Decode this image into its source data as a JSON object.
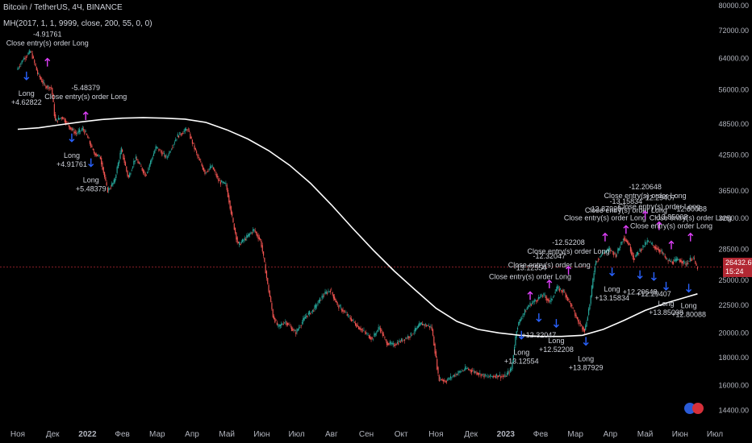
{
  "header": {
    "symbol": "Bitcoin / TetherUS, 4Ч, BINANCE",
    "indicator": "MH(2017, 1, 1, 9999, close, 200, 55, 0, 0)"
  },
  "price_tag": {
    "price": "26432.60",
    "countdown": "15:24"
  },
  "colors": {
    "background": "#000000",
    "up": "#26a69a",
    "down": "#ef5350",
    "ma": "#ffffff",
    "buy_arrow": "#2962ff",
    "sell_arrow": "#e040fb",
    "price_line": "#b22833"
  },
  "chart_data": {
    "type": "candlestick",
    "x_ticks": [
      "Ноя",
      "Дек",
      "2022",
      "Фев",
      "Мар",
      "Апр",
      "Май",
      "Июн",
      "Июл",
      "Авг",
      "Сен",
      "Окт",
      "Ноя",
      "Дек",
      "2023",
      "Фев",
      "Мар",
      "Апр",
      "Май",
      "Июн",
      "Июл"
    ],
    "y_ticks": [
      14400,
      16000,
      18000,
      20000,
      22500,
      25000,
      28500,
      32500,
      36500,
      42500,
      48500,
      56000,
      64000,
      72000,
      80000
    ],
    "y_tick_labels": [
      "14400.00",
      "16000.00",
      "18000.00",
      "20000.00",
      "22500.00",
      "25000.00",
      "28500.00",
      "32500.00",
      "36500.00",
      "42500.00",
      "48500.00",
      "56000.00",
      "64000.00",
      "72000.00",
      "80000.00"
    ],
    "y_scale": "log",
    "ylim": [
      13800,
      82000
    ],
    "xlim_months": [
      0,
      20.6
    ],
    "price_series": [
      [
        0.0,
        61000
      ],
      [
        0.2,
        64000
      ],
      [
        0.4,
        66000
      ],
      [
        0.6,
        60000
      ],
      [
        0.8,
        57000
      ],
      [
        1.0,
        56500
      ],
      [
        1.1,
        49000
      ],
      [
        1.3,
        50000
      ],
      [
        1.5,
        48000
      ],
      [
        1.7,
        46500
      ],
      [
        1.9,
        47500
      ],
      [
        2.0,
        46300
      ],
      [
        2.2,
        43000
      ],
      [
        2.4,
        42000
      ],
      [
        2.6,
        36500
      ],
      [
        2.8,
        38000
      ],
      [
        3.0,
        43500
      ],
      [
        3.2,
        38500
      ],
      [
        3.4,
        42000
      ],
      [
        3.7,
        39000
      ],
      [
        4.0,
        44000
      ],
      [
        4.3,
        42000
      ],
      [
        4.6,
        46000
      ],
      [
        4.9,
        47500
      ],
      [
        5.0,
        45500
      ],
      [
        5.2,
        42000
      ],
      [
        5.4,
        39500
      ],
      [
        5.6,
        40500
      ],
      [
        5.8,
        38000
      ],
      [
        6.0,
        37500
      ],
      [
        6.2,
        32000
      ],
      [
        6.35,
        29000
      ],
      [
        6.6,
        30000
      ],
      [
        6.8,
        31000
      ],
      [
        7.0,
        29500
      ],
      [
        7.2,
        24500
      ],
      [
        7.35,
        21500
      ],
      [
        7.5,
        20500
      ],
      [
        7.7,
        21000
      ],
      [
        8.0,
        20000
      ],
      [
        8.3,
        21500
      ],
      [
        8.5,
        22000
      ],
      [
        8.8,
        23500
      ],
      [
        9.0,
        24000
      ],
      [
        9.2,
        22500
      ],
      [
        9.5,
        21500
      ],
      [
        9.8,
        20500
      ],
      [
        10.0,
        20000
      ],
      [
        10.2,
        19500
      ],
      [
        10.4,
        20500
      ],
      [
        10.6,
        19200
      ],
      [
        10.8,
        19000
      ],
      [
        11.0,
        19300
      ],
      [
        11.3,
        19800
      ],
      [
        11.6,
        20800
      ],
      [
        11.9,
        20500
      ],
      [
        12.0,
        18500
      ],
      [
        12.1,
        16500
      ],
      [
        12.3,
        16300
      ],
      [
        12.6,
        16800
      ],
      [
        12.9,
        17200
      ],
      [
        13.2,
        16900
      ],
      [
        13.5,
        16600
      ],
      [
        13.8,
        16700
      ],
      [
        14.0,
        16600
      ],
      [
        14.2,
        17200
      ],
      [
        14.35,
        20500
      ],
      [
        14.5,
        21500
      ],
      [
        14.7,
        22500
      ],
      [
        14.9,
        23000
      ],
      [
        15.1,
        23500
      ],
      [
        15.3,
        22800
      ],
      [
        15.5,
        24200
      ],
      [
        15.7,
        23800
      ],
      [
        15.9,
        22500
      ],
      [
        16.1,
        21000
      ],
      [
        16.3,
        20200
      ],
      [
        16.45,
        22800
      ],
      [
        16.6,
        27000
      ],
      [
        16.8,
        28000
      ],
      [
        17.0,
        28500
      ],
      [
        17.2,
        27800
      ],
      [
        17.4,
        30000
      ],
      [
        17.55,
        29200
      ],
      [
        17.7,
        27400
      ],
      [
        17.9,
        28500
      ],
      [
        18.1,
        29500
      ],
      [
        18.3,
        28800
      ],
      [
        18.5,
        28200
      ],
      [
        18.65,
        27200
      ],
      [
        18.8,
        27000
      ],
      [
        19.0,
        27300
      ],
      [
        19.2,
        26800
      ],
      [
        19.4,
        27600
      ],
      [
        19.5,
        26432
      ]
    ],
    "series": [
      {
        "name": "MA 200",
        "points": [
          [
            0.0,
            47400
          ],
          [
            0.6,
            47700
          ],
          [
            1.2,
            48300
          ],
          [
            1.8,
            48900
          ],
          [
            2.4,
            49400
          ],
          [
            3.0,
            49700
          ],
          [
            3.6,
            49800
          ],
          [
            4.2,
            49700
          ],
          [
            4.8,
            49500
          ],
          [
            5.4,
            48800
          ],
          [
            6.0,
            47300
          ],
          [
            6.6,
            45500
          ],
          [
            7.2,
            43300
          ],
          [
            7.8,
            40700
          ],
          [
            8.4,
            37700
          ],
          [
            9.0,
            34400
          ],
          [
            9.6,
            31200
          ],
          [
            10.2,
            28400
          ],
          [
            10.8,
            26000
          ],
          [
            11.4,
            24000
          ],
          [
            12.0,
            22200
          ],
          [
            12.6,
            21000
          ],
          [
            13.2,
            20300
          ],
          [
            13.8,
            20000
          ],
          [
            14.4,
            19800
          ],
          [
            15.0,
            19700
          ],
          [
            15.6,
            19700
          ],
          [
            16.2,
            19800
          ],
          [
            16.8,
            20300
          ],
          [
            17.4,
            21100
          ],
          [
            18.0,
            22000
          ],
          [
            18.6,
            22700
          ],
          [
            19.2,
            23300
          ],
          [
            19.5,
            23600
          ]
        ]
      }
    ],
    "annotations": [
      {
        "type": "buy",
        "x": 0.25,
        "y": 58500,
        "texts": [
          "Long",
          "+4.62822"
        ]
      },
      {
        "type": "sell",
        "x": 0.85,
        "y": 64000,
        "texts": [
          "-4.91761",
          "Close entry(s) order Long"
        ]
      },
      {
        "type": "buy",
        "x": 1.55,
        "y": 45000,
        "texts": [
          "Long",
          "+4.91761"
        ]
      },
      {
        "type": "sell",
        "x": 1.95,
        "y": 51000,
        "texts": [
          "-5.48379",
          "Close entry(s) order Long"
        ]
      },
      {
        "type": "buy",
        "x": 2.1,
        "y": 40500,
        "texts": [
          "Long",
          "+5.48379"
        ]
      },
      {
        "type": "buy",
        "x": 14.45,
        "y": 19500,
        "texts": [
          "Long",
          "+13.12554"
        ]
      },
      {
        "type": "sell",
        "x": 14.7,
        "y": 23800,
        "texts": [
          "-13.12554",
          "Close entry(s) order Long"
        ]
      },
      {
        "type": "buy",
        "x": 14.95,
        "y": 21000,
        "texts": [
          "+12.32047"
        ]
      },
      {
        "type": "sell",
        "x": 15.25,
        "y": 25000,
        "texts": [
          "-12.32047",
          "Close entry(s) order Long"
        ]
      },
      {
        "type": "buy",
        "x": 15.45,
        "y": 20500,
        "texts": [
          "Long",
          "+12.52208"
        ]
      },
      {
        "type": "sell",
        "x": 15.8,
        "y": 26500,
        "texts": [
          "-12.52208",
          "Close entry(s) order Long"
        ]
      },
      {
        "type": "buy",
        "x": 16.3,
        "y": 19000,
        "texts": [
          "Long",
          "+13.87929"
        ]
      },
      {
        "type": "sell",
        "x": 16.85,
        "y": 30500,
        "texts": [
          "-13.87929",
          "Close entry(s) order Long"
        ]
      },
      {
        "type": "buy",
        "x": 17.05,
        "y": 25500,
        "texts": [
          "Long",
          "+13.15834"
        ]
      },
      {
        "type": "sell",
        "x": 17.45,
        "y": 31500,
        "texts": [
          "-13.15834",
          "Close entry(s) order Long"
        ]
      },
      {
        "type": "buy",
        "x": 17.85,
        "y": 25200,
        "texts": [
          "+12.20648"
        ]
      },
      {
        "type": "sell",
        "x": 18.0,
        "y": 33500,
        "texts": [
          "-12.20648",
          "Close entry(s) order Long"
        ]
      },
      {
        "type": "buy",
        "x": 18.25,
        "y": 25000,
        "texts": [
          "+12.29407"
        ]
      },
      {
        "type": "sell",
        "x": 18.4,
        "y": 32000,
        "texts": [
          "-12.29407",
          "Close entry(s) order Long"
        ]
      },
      {
        "type": "buy",
        "x": 18.6,
        "y": 24000,
        "texts": [
          "Long",
          "+13.85008"
        ]
      },
      {
        "type": "sell",
        "x": 18.75,
        "y": 29500,
        "texts": [
          "-13.85008",
          "Close entry(s) order Long"
        ]
      },
      {
        "type": "buy",
        "x": 19.25,
        "y": 23800,
        "texts": [
          "Long",
          "+12.80088"
        ]
      },
      {
        "type": "sell",
        "x": 19.3,
        "y": 30500,
        "texts": [
          "-12.80088",
          "Close entry(s) order Long"
        ]
      }
    ]
  }
}
